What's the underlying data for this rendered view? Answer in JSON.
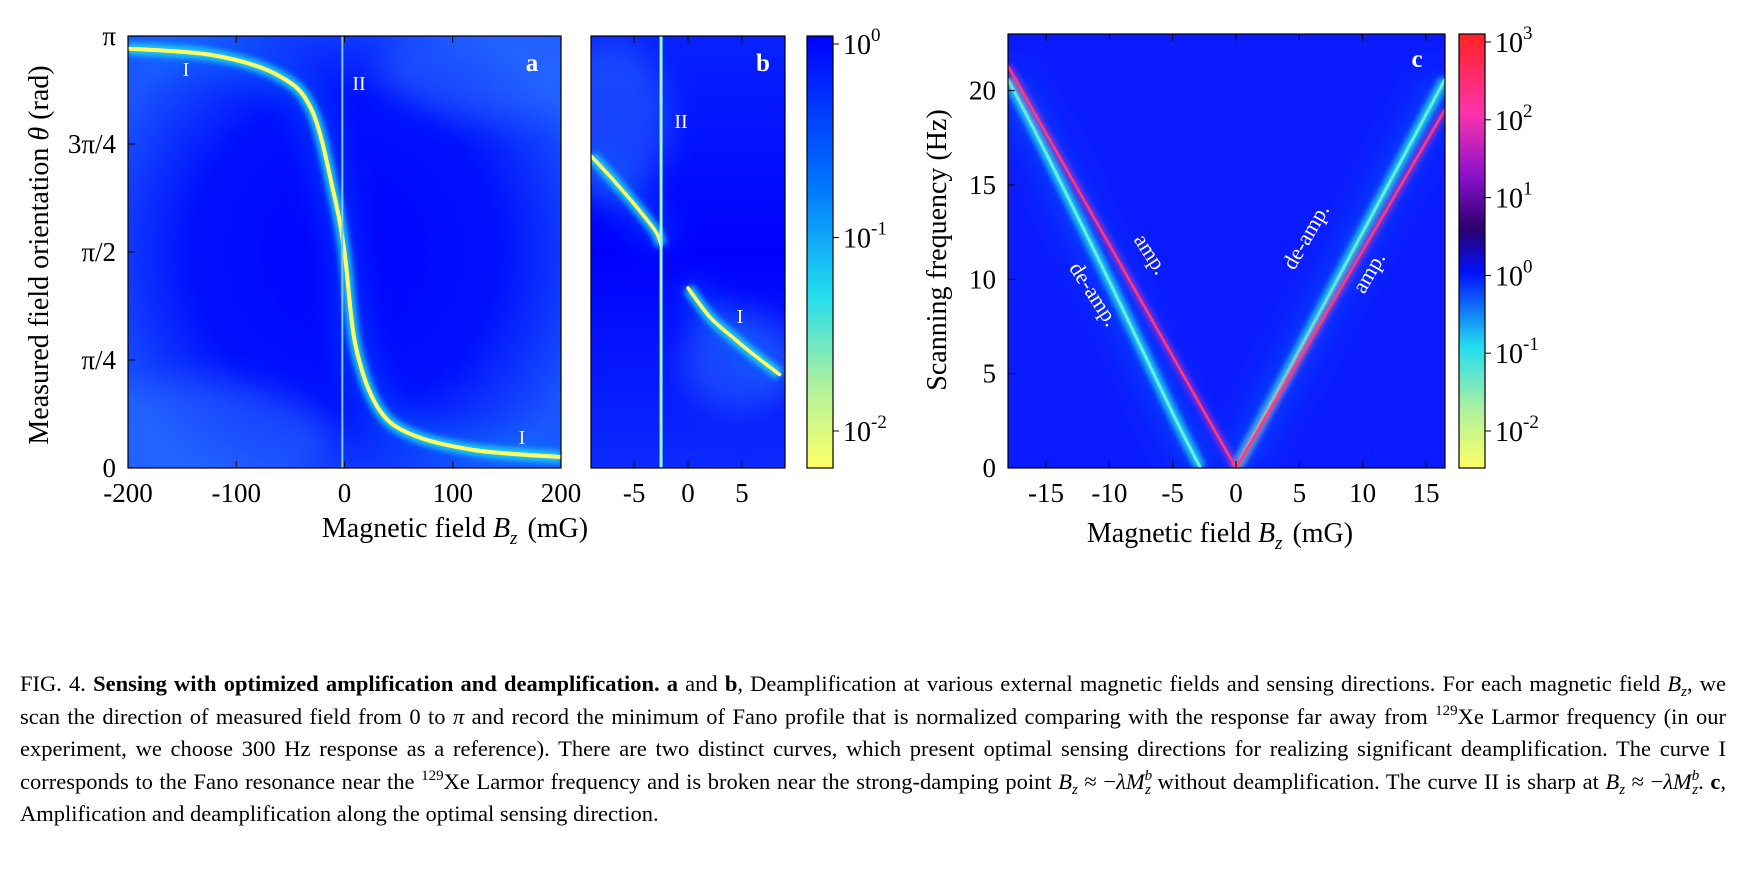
{
  "colormaps": {
    "deamp": [
      "#0000ff",
      "#0088ff",
      "#22ddee",
      "#ffff66"
    ],
    "full": [
      "#ffff66",
      "#22ddee",
      "#0033ff",
      "#2a006e",
      "#dd22cc",
      "#ff2222"
    ]
  },
  "panel_a": {
    "letter": "a",
    "xlabel_main": "Magnetic field ",
    "xlabel_var": "B",
    "xlabel_sub": "z",
    "xlabel_unit": "(mG)",
    "ylabel_main": "Measured field orientation ",
    "ylabel_var": "θ",
    "ylabel_unit": " (rad)",
    "curve_labels": [
      "I",
      "II",
      "I"
    ]
  },
  "panel_b": {
    "letter": "b",
    "curve_labels": [
      "II",
      "I"
    ]
  },
  "colorbar_ab": {
    "ticks": [
      {
        "base": "10",
        "exp": "0"
      },
      {
        "base": "10",
        "exp": "-1"
      },
      {
        "base": "10",
        "exp": "-2"
      }
    ]
  },
  "panel_c": {
    "letter": "c",
    "xlabel_main": "Magnetic field ",
    "xlabel_var": "B",
    "xlabel_sub": "z",
    "xlabel_unit": "(mG)",
    "ylabel": "Scanning frequency (Hz)",
    "line_labels": [
      "de-amp.",
      "amp.",
      "de-amp.",
      "amp."
    ]
  },
  "colorbar_c": {
    "ticks": [
      {
        "base": "10",
        "exp": "3"
      },
      {
        "base": "10",
        "exp": "2"
      },
      {
        "base": "10",
        "exp": "1"
      },
      {
        "base": "10",
        "exp": "0"
      },
      {
        "base": "10",
        "exp": "-1"
      },
      {
        "base": "10",
        "exp": "-2"
      }
    ]
  },
  "chart_data": [
    {
      "type": "heatmap",
      "panel": "a",
      "xlabel": "Magnetic field B_z (mG)",
      "ylabel": "Measured field orientation θ (rad)",
      "xlim": [
        -200,
        200
      ],
      "ylim": [
        0,
        3.1416
      ],
      "xticks": [
        "-200",
        "-100",
        "0",
        "100",
        "200"
      ],
      "yticks": [
        "0",
        "π/4",
        "π/2",
        "3π/4",
        "π"
      ],
      "curves": [
        {
          "name": "I",
          "x": [
            -200,
            -120,
            -60,
            -30,
            -10,
            0,
            10,
            30,
            60,
            120,
            200
          ],
          "y": [
            3.05,
            3.0,
            2.85,
            2.6,
            2.0,
            1.57,
            0.9,
            0.45,
            0.25,
            0.13,
            0.08
          ]
        },
        {
          "name": "II",
          "x": [
            -2,
            -2
          ],
          "y": [
            0,
            3.1416
          ]
        }
      ]
    },
    {
      "type": "heatmap",
      "panel": "b",
      "xlabel": "Magnetic field B_z (mG)",
      "xlim": [
        -9,
        9
      ],
      "ylim": [
        0,
        3.1416
      ],
      "xticks": [
        "-5",
        "0",
        "5"
      ],
      "curves": [
        {
          "name": "I (left branch)",
          "x": [
            -9,
            -7,
            -5,
            -3,
            -2.5
          ],
          "y": [
            2.27,
            2.1,
            1.92,
            1.72,
            1.62
          ]
        },
        {
          "name": "I (right branch)",
          "x": [
            0,
            2,
            4,
            6,
            8.5
          ],
          "y": [
            1.31,
            1.1,
            0.96,
            0.83,
            0.68
          ]
        },
        {
          "name": "II",
          "x": [
            -2.5,
            -2.5
          ],
          "y": [
            0,
            3.1416
          ]
        }
      ]
    },
    {
      "type": "heatmap",
      "panel": "c",
      "xlabel": "Magnetic field B_z (mG)",
      "ylabel": "Scanning frequency (Hz)",
      "xlim": [
        -18,
        16.5
      ],
      "ylim": [
        0,
        23
      ],
      "xticks": [
        "-15",
        "-10",
        "-5",
        "0",
        "5",
        "10",
        "15"
      ],
      "yticks": [
        "0",
        "5",
        "10",
        "15",
        "20"
      ],
      "curves": [
        {
          "name": "de-amp. (left)",
          "x": [
            -2.8,
            -5,
            -10,
            -15,
            -18
          ],
          "y": [
            0,
            2.9,
            9.9,
            16.7,
            20.6
          ]
        },
        {
          "name": "amp. (left)",
          "x": [
            0,
            -18
          ],
          "y": [
            0,
            21.3
          ]
        },
        {
          "name": "de-amp. (right)",
          "x": [
            0,
            16.5
          ],
          "y": [
            0,
            20.6
          ]
        },
        {
          "name": "amp. (right)",
          "x": [
            0,
            16.5
          ],
          "y": [
            0,
            19
          ]
        }
      ]
    }
  ],
  "caption": {
    "fig": "FIG. 4. ",
    "title": "Sensing with optimized amplification and deamplification.",
    "bold_a": "a",
    "and": " and ",
    "bold_b": "b",
    "s1": ", Deamplification at various external magnetic fields and sensing directions. For each magnetic field ",
    "var_B": "B",
    "sub_z": "z",
    "s2": ", we scan the direction of measured field from 0 to ",
    "pi": "π",
    "s3": " and record the minimum of Fano profile that is normalized comparing with the response far away from ",
    "iso": "129",
    "s4": "Xe Larmor frequency (in our experiment, we choose 300 Hz response as a reference). There are two distinct curves, which present optimal sensing directions for realizing significant deamplification. The curve I corresponds to the Fano resonance near the ",
    "iso2": "129",
    "s5": "Xe Larmor frequency and is broken near the strong-damping point ",
    "eq1": " ≈ −",
    "lambda": "λ",
    "M": "M",
    "sup_b": "b",
    "s6": " without deamplification. The curve II is sharp at ",
    "eq2": " ≈ −",
    "s7": ". ",
    "bold_c": "c",
    "s8": ", Amplification and deamplification along the optimal sensing direction."
  }
}
